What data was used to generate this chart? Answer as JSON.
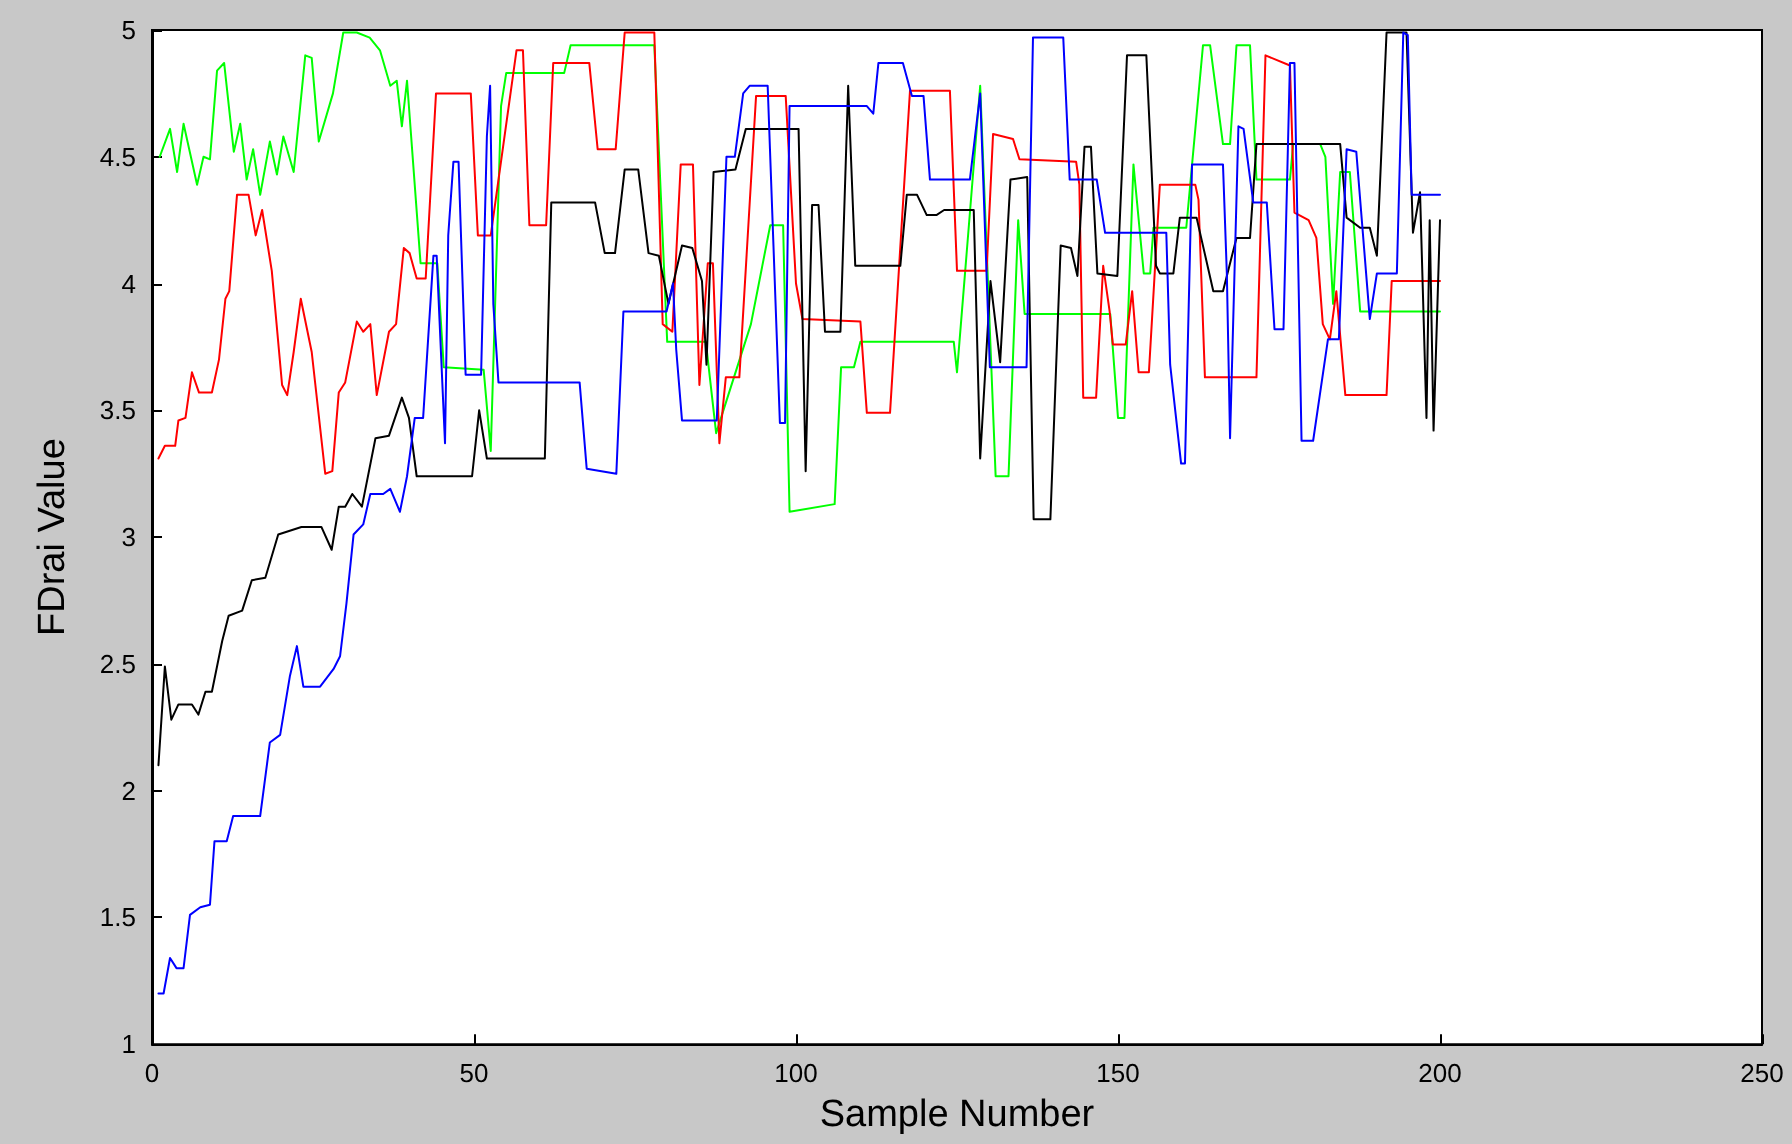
{
  "chart_data": {
    "type": "line",
    "xlabel": "Sample Number",
    "ylabel": "FDrai Value",
    "xlim": [
      0,
      250
    ],
    "xticks": [
      0,
      50,
      100,
      150,
      200,
      250
    ],
    "ylim": [
      1,
      5
    ],
    "yticks": [
      1,
      1.5,
      2,
      2.5,
      3,
      3.5,
      4,
      4.5,
      5
    ],
    "grid": false,
    "marker": "none",
    "line_style": "solid",
    "series": [
      {
        "color": "#00ff00",
        "x": [
          1.2,
          2.8,
          3.9,
          4.9,
          7,
          8,
          9,
          10.1,
          11.2,
          12.7,
          13.7,
          14.7,
          15.7,
          16.8,
          18.3,
          19.4,
          20.4,
          22,
          23.8,
          24.8,
          25.9,
          28.1,
          29.7,
          31.8,
          33.8,
          35.4,
          37,
          38,
          38.8,
          39.6,
          41.7,
          44.3,
          45.3,
          51.5,
          52.6,
          54.2,
          55,
          64,
          65,
          78,
          80,
          86,
          87.6,
          93,
          96,
          98,
          99,
          106,
          107,
          109,
          110,
          124.5,
          125,
          128.6,
          131,
          133,
          134.5,
          135.5,
          148.8,
          150,
          151,
          152.4,
          154,
          155,
          155.5,
          160.6,
          163.2,
          164.3,
          166.3,
          167.4,
          168.4,
          170.5,
          171.5,
          176.7,
          177.2,
          181.4,
          182.2,
          183.4,
          184.5,
          186,
          187.6,
          200
        ],
        "values": [
          4.5,
          4.61,
          4.44,
          4.63,
          4.39,
          4.5,
          4.49,
          4.84,
          4.87,
          4.52,
          4.63,
          4.41,
          4.53,
          4.35,
          4.56,
          4.43,
          4.58,
          4.44,
          4.9,
          4.89,
          4.56,
          4.75,
          4.99,
          4.99,
          4.97,
          4.92,
          4.78,
          4.8,
          4.62,
          4.8,
          4.08,
          4.08,
          3.67,
          3.66,
          3.34,
          4.7,
          4.83,
          4.83,
          4.94,
          4.94,
          3.77,
          3.77,
          3.41,
          3.84,
          4.23,
          4.23,
          3.1,
          3.13,
          3.67,
          3.67,
          3.77,
          3.77,
          3.65,
          4.78,
          3.24,
          3.24,
          4.25,
          3.88,
          3.88,
          3.47,
          3.47,
          4.47,
          4.04,
          4.04,
          4.22,
          4.22,
          4.94,
          4.94,
          4.55,
          4.55,
          4.94,
          4.94,
          4.41,
          4.41,
          4.55,
          4.55,
          4.5,
          3.92,
          4.44,
          4.44,
          3.89,
          3.89
        ]
      },
      {
        "color": "#ff0000",
        "x": [
          1,
          2,
          3.6,
          4.1,
          5.2,
          6.2,
          7.3,
          9.3,
          10.4,
          11.4,
          12,
          13.2,
          15,
          16.1,
          17.1,
          18.6,
          20.2,
          21,
          22,
          23.1,
          24.8,
          26.9,
          28,
          29,
          30,
          31.8,
          32.8,
          33.9,
          34.9,
          36.8,
          37.9,
          39.1,
          40,
          41.1,
          42.5,
          44.1,
          49.5,
          50.6,
          52.6,
          56.6,
          57.6,
          58.6,
          61.2,
          62.3,
          67.9,
          69.2,
          72,
          73.4,
          78,
          79.3,
          80.8,
          82.1,
          84,
          85,
          86.3,
          87.1,
          88.1,
          89.1,
          91.2,
          93.8,
          98.4,
          100,
          101,
          110,
          111,
          114.6,
          117.7,
          123.9,
          125,
          129.6,
          130.6,
          133.7,
          134.7,
          143.5,
          144,
          144.6,
          146.6,
          147.7,
          148.7,
          149.2,
          151.2,
          152.2,
          153.2,
          154.8,
          156.5,
          162,
          162.5,
          163.5,
          171.5,
          172.9,
          176.7,
          177.4,
          179.6,
          180.8,
          181.8,
          182.9,
          183.9,
          185.3,
          191.7,
          192.5,
          200
        ],
        "values": [
          3.31,
          3.36,
          3.36,
          3.46,
          3.47,
          3.65,
          3.57,
          3.57,
          3.7,
          3.94,
          3.97,
          4.35,
          4.35,
          4.19,
          4.29,
          4.05,
          3.6,
          3.56,
          3.73,
          3.94,
          3.73,
          3.25,
          3.26,
          3.57,
          3.61,
          3.85,
          3.81,
          3.84,
          3.56,
          3.81,
          3.84,
          4.14,
          4.12,
          4.02,
          4.02,
          4.75,
          4.75,
          4.19,
          4.19,
          4.92,
          4.92,
          4.23,
          4.23,
          4.87,
          4.87,
          4.53,
          4.53,
          4.99,
          4.99,
          3.84,
          3.81,
          4.47,
          4.47,
          3.6,
          4.08,
          4.08,
          3.37,
          3.63,
          3.63,
          4.74,
          4.74,
          4.0,
          3.86,
          3.85,
          3.49,
          3.49,
          4.76,
          4.76,
          4.05,
          4.05,
          4.59,
          4.57,
          4.49,
          4.48,
          4.39,
          3.55,
          3.55,
          4.07,
          3.89,
          3.76,
          3.76,
          3.97,
          3.65,
          3.65,
          4.39,
          4.39,
          4.33,
          3.63,
          3.63,
          4.9,
          4.86,
          4.28,
          4.25,
          4.18,
          3.84,
          3.78,
          3.97,
          3.56,
          3.56,
          4.01,
          4.01
        ]
      },
      {
        "color": "#000000",
        "x": [
          1,
          2,
          3,
          4.1,
          6.2,
          7.2,
          8.3,
          9.3,
          10.9,
          11.9,
          14,
          15.5,
          17.6,
          19.6,
          23.2,
          26.3,
          27.9,
          29,
          30,
          31.1,
          32.6,
          34.7,
          36.8,
          38.8,
          39.9,
          41.1,
          49.7,
          50.8,
          52,
          61,
          62,
          68.8,
          70.3,
          71.9,
          73.4,
          75.5,
          77.1,
          78.7,
          80.2,
          82.3,
          83.9,
          85.4,
          86.1,
          87.2,
          90.6,
          92.2,
          100.4,
          101.5,
          102.5,
          103.5,
          104.5,
          106.9,
          108.1,
          109.2,
          116.2,
          117.2,
          118.8,
          120.3,
          121.8,
          123,
          127.6,
          128.6,
          130.2,
          131.7,
          133.3,
          135.9,
          136.9,
          139.5,
          141.1,
          142.7,
          143.7,
          144.8,
          145.8,
          146.8,
          149.9,
          151.4,
          154.4,
          155.9,
          156.5,
          158.6,
          159.6,
          162.2,
          164.8,
          166.3,
          168.4,
          170.5,
          171.5,
          184.5,
          185.5,
          187.6,
          189.1,
          190.2,
          191.7,
          194.8,
          195.8,
          196.9,
          197.9,
          198.4,
          199,
          200
        ],
        "values": [
          2.1,
          2.49,
          2.28,
          2.34,
          2.34,
          2.3,
          2.39,
          2.39,
          2.59,
          2.69,
          2.71,
          2.83,
          2.84,
          3.01,
          3.04,
          3.04,
          2.95,
          3.12,
          3.12,
          3.17,
          3.12,
          3.39,
          3.4,
          3.55,
          3.47,
          3.24,
          3.24,
          3.5,
          3.31,
          3.31,
          4.32,
          4.32,
          4.12,
          4.12,
          4.45,
          4.45,
          4.12,
          4.11,
          3.92,
          4.15,
          4.14,
          4.01,
          3.68,
          4.44,
          4.45,
          4.61,
          4.61,
          3.26,
          4.31,
          4.31,
          3.81,
          3.81,
          4.78,
          4.07,
          4.07,
          4.35,
          4.35,
          4.27,
          4.27,
          4.29,
          4.29,
          3.31,
          4.01,
          3.69,
          4.41,
          4.42,
          3.07,
          3.07,
          4.15,
          4.14,
          4.03,
          4.54,
          4.54,
          4.04,
          4.03,
          4.9,
          4.9,
          4.07,
          4.04,
          4.04,
          4.26,
          4.26,
          3.97,
          3.97,
          4.18,
          4.18,
          4.55,
          4.55,
          4.26,
          4.22,
          4.22,
          4.11,
          4.99,
          4.99,
          4.2,
          4.36,
          3.47,
          4.25,
          3.42,
          4.25
        ]
      },
      {
        "color": "#0000ff",
        "x": [
          1,
          1.8,
          2.8,
          3.8,
          4.9,
          5.9,
          7.5,
          9,
          9.7,
          11.6,
          12.6,
          16.8,
          18.3,
          19.9,
          21.4,
          22.5,
          23.5,
          26.1,
          28.2,
          29.2,
          30.2,
          31.3,
          32.8,
          33.9,
          35.9,
          37,
          38.5,
          39.6,
          40.8,
          42.1,
          43.7,
          44.2,
          45.5,
          46,
          46.8,
          47.6,
          48.7,
          51.1,
          52,
          52.5,
          53,
          53.8,
          66.4,
          67.5,
          72.1,
          73.2,
          79.9,
          80.9,
          81.4,
          82.3,
          87.7,
          89.2,
          90.5,
          91.8,
          92.8,
          95.6,
          96.5,
          97.5,
          98.3,
          99,
          111,
          112,
          112.8,
          116.6,
          118,
          119.8,
          120.8,
          127,
          128.6,
          130.1,
          135.8,
          136.8,
          141.5,
          142.5,
          146.7,
          148,
          157.5,
          158.1,
          159.8,
          160.4,
          161.5,
          166.3,
          166.9,
          167.4,
          168.7,
          169.5,
          171,
          173.1,
          174.3,
          175.7,
          176.7,
          177.4,
          178.5,
          180.3,
          182.6,
          184.3,
          185.5,
          187,
          189.1,
          190.2,
          193.3,
          194.3,
          195,
          195.6,
          200
        ],
        "values": [
          1.2,
          1.2,
          1.34,
          1.3,
          1.3,
          1.51,
          1.54,
          1.55,
          1.8,
          1.8,
          1.9,
          1.9,
          2.19,
          2.22,
          2.45,
          2.57,
          2.41,
          2.41,
          2.48,
          2.53,
          2.74,
          3.01,
          3.05,
          3.17,
          3.17,
          3.19,
          3.1,
          3.24,
          3.47,
          3.47,
          4.11,
          4.11,
          3.37,
          4.19,
          4.48,
          4.48,
          3.64,
          3.64,
          4.58,
          4.78,
          3.92,
          3.61,
          3.61,
          3.27,
          3.25,
          3.89,
          3.89,
          4.0,
          3.74,
          3.46,
          3.46,
          4.5,
          4.5,
          4.75,
          4.78,
          4.78,
          4.15,
          3.45,
          3.45,
          4.7,
          4.7,
          4.67,
          4.87,
          4.87,
          4.74,
          4.74,
          4.41,
          4.41,
          4.75,
          3.67,
          3.67,
          4.97,
          4.97,
          4.41,
          4.41,
          4.2,
          4.2,
          3.68,
          3.29,
          3.29,
          4.47,
          4.47,
          4.04,
          3.39,
          4.62,
          4.61,
          4.32,
          4.32,
          3.82,
          3.82,
          4.87,
          4.87,
          3.38,
          3.38,
          3.78,
          3.78,
          4.53,
          4.52,
          3.86,
          4.04,
          4.04,
          4.99,
          4.98,
          4.35,
          4.35
        ]
      }
    ]
  }
}
